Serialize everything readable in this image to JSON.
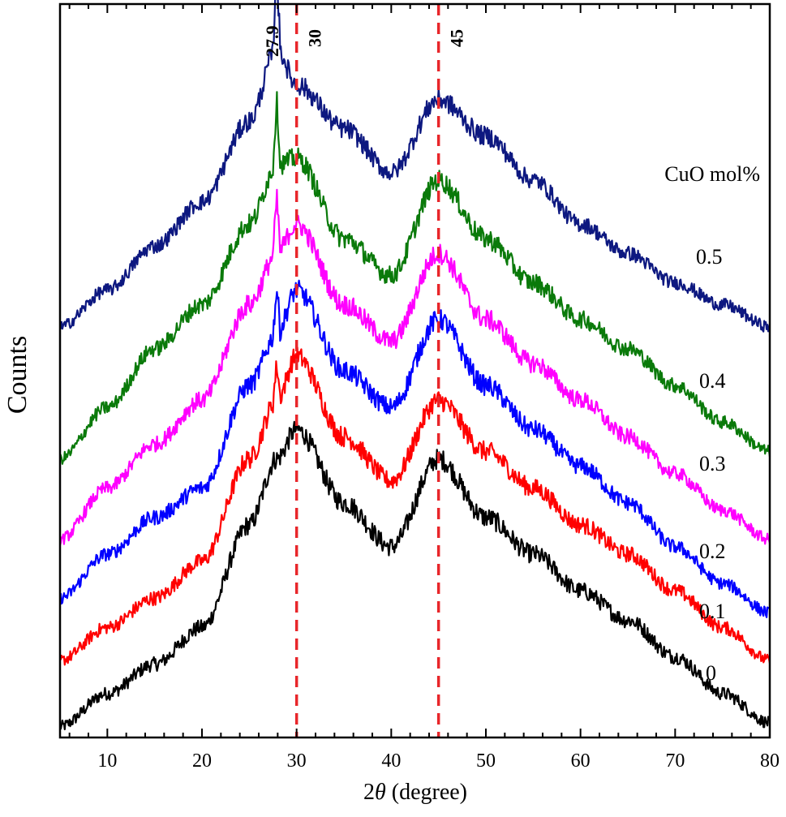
{
  "chart_data": {
    "type": "line",
    "title": "",
    "xlabel_prefix": "2",
    "xlabel_symbol": "θ",
    "xlabel_suffix": " (degree)",
    "ylabel": "Counts",
    "xlim": [
      5,
      80
    ],
    "ylim": [
      0,
      10
    ],
    "xticks": [
      10,
      20,
      30,
      40,
      50,
      60,
      70,
      80
    ],
    "yticks_shown": false,
    "legend_title": "CuO mol%",
    "reference_lines": [
      {
        "x": 30,
        "label": "30",
        "color": "#e8262a",
        "style": "dashed"
      },
      {
        "x": 45,
        "label": "45",
        "color": "#e8262a",
        "style": "dashed"
      }
    ],
    "annotations": [
      {
        "x": 27.9,
        "text": "27.9"
      }
    ],
    "series": [
      {
        "name": "0",
        "color": "#000000",
        "x": [
          5,
          10,
          15,
          20,
          25,
          27.9,
          30,
          35,
          40,
          45,
          50,
          55,
          60,
          65,
          70,
          75,
          80
        ],
        "y": [
          0.15,
          0.6,
          1.0,
          1.5,
          2.9,
          3.8,
          4.2,
          3.2,
          2.6,
          3.8,
          3.0,
          2.5,
          2.0,
          1.6,
          1.1,
          0.6,
          0.2
        ]
      },
      {
        "name": "0.1",
        "color": "#ff0000",
        "x": [
          5,
          10,
          15,
          20,
          25,
          27.9,
          30,
          35,
          40,
          45,
          50,
          55,
          60,
          65,
          70,
          75,
          80
        ],
        "y": [
          1.05,
          1.5,
          1.9,
          2.4,
          3.8,
          4.6,
          5.2,
          4.1,
          3.5,
          4.6,
          3.9,
          3.4,
          2.9,
          2.5,
          2.0,
          1.5,
          1.05
        ]
      },
      {
        "name": "0.2",
        "color": "#0000ff",
        "x": [
          5,
          10,
          15,
          20,
          25,
          27.9,
          30,
          35,
          40,
          45,
          50,
          55,
          60,
          65,
          70,
          75,
          80
        ],
        "y": [
          1.9,
          2.5,
          3.0,
          3.4,
          4.8,
          5.5,
          6.1,
          5.0,
          4.5,
          5.7,
          4.8,
          4.2,
          3.7,
          3.2,
          2.6,
          2.1,
          1.7
        ]
      },
      {
        "name": "0.3",
        "color": "#ff00ff",
        "x": [
          5,
          10,
          15,
          20,
          25,
          27.9,
          30,
          35,
          40,
          45,
          50,
          55,
          60,
          65,
          70,
          75,
          80
        ],
        "y": [
          2.7,
          3.4,
          4.0,
          4.6,
          5.9,
          6.6,
          7.0,
          5.9,
          5.4,
          6.6,
          5.7,
          5.1,
          4.6,
          4.1,
          3.6,
          3.1,
          2.7
        ]
      },
      {
        "name": "0.4",
        "color": "#0a7a0a",
        "x": [
          5,
          10,
          15,
          20,
          25,
          27.9,
          30,
          35,
          40,
          45,
          50,
          55,
          60,
          65,
          70,
          75,
          80
        ],
        "y": [
          3.8,
          4.5,
          5.3,
          5.9,
          7.0,
          7.8,
          7.9,
          6.8,
          6.3,
          7.6,
          6.8,
          6.2,
          5.7,
          5.3,
          4.8,
          4.3,
          3.9
        ]
      },
      {
        "name": "0.5",
        "color": "#0d1880",
        "x": [
          5,
          10,
          15,
          20,
          25,
          27.9,
          30,
          35,
          40,
          45,
          50,
          55,
          60,
          65,
          70,
          75,
          80
        ],
        "y": [
          5.6,
          6.1,
          6.7,
          7.3,
          8.4,
          9.4,
          8.9,
          8.3,
          7.7,
          8.7,
          8.2,
          7.6,
          7.0,
          6.6,
          6.2,
          5.9,
          5.6
        ]
      }
    ]
  }
}
